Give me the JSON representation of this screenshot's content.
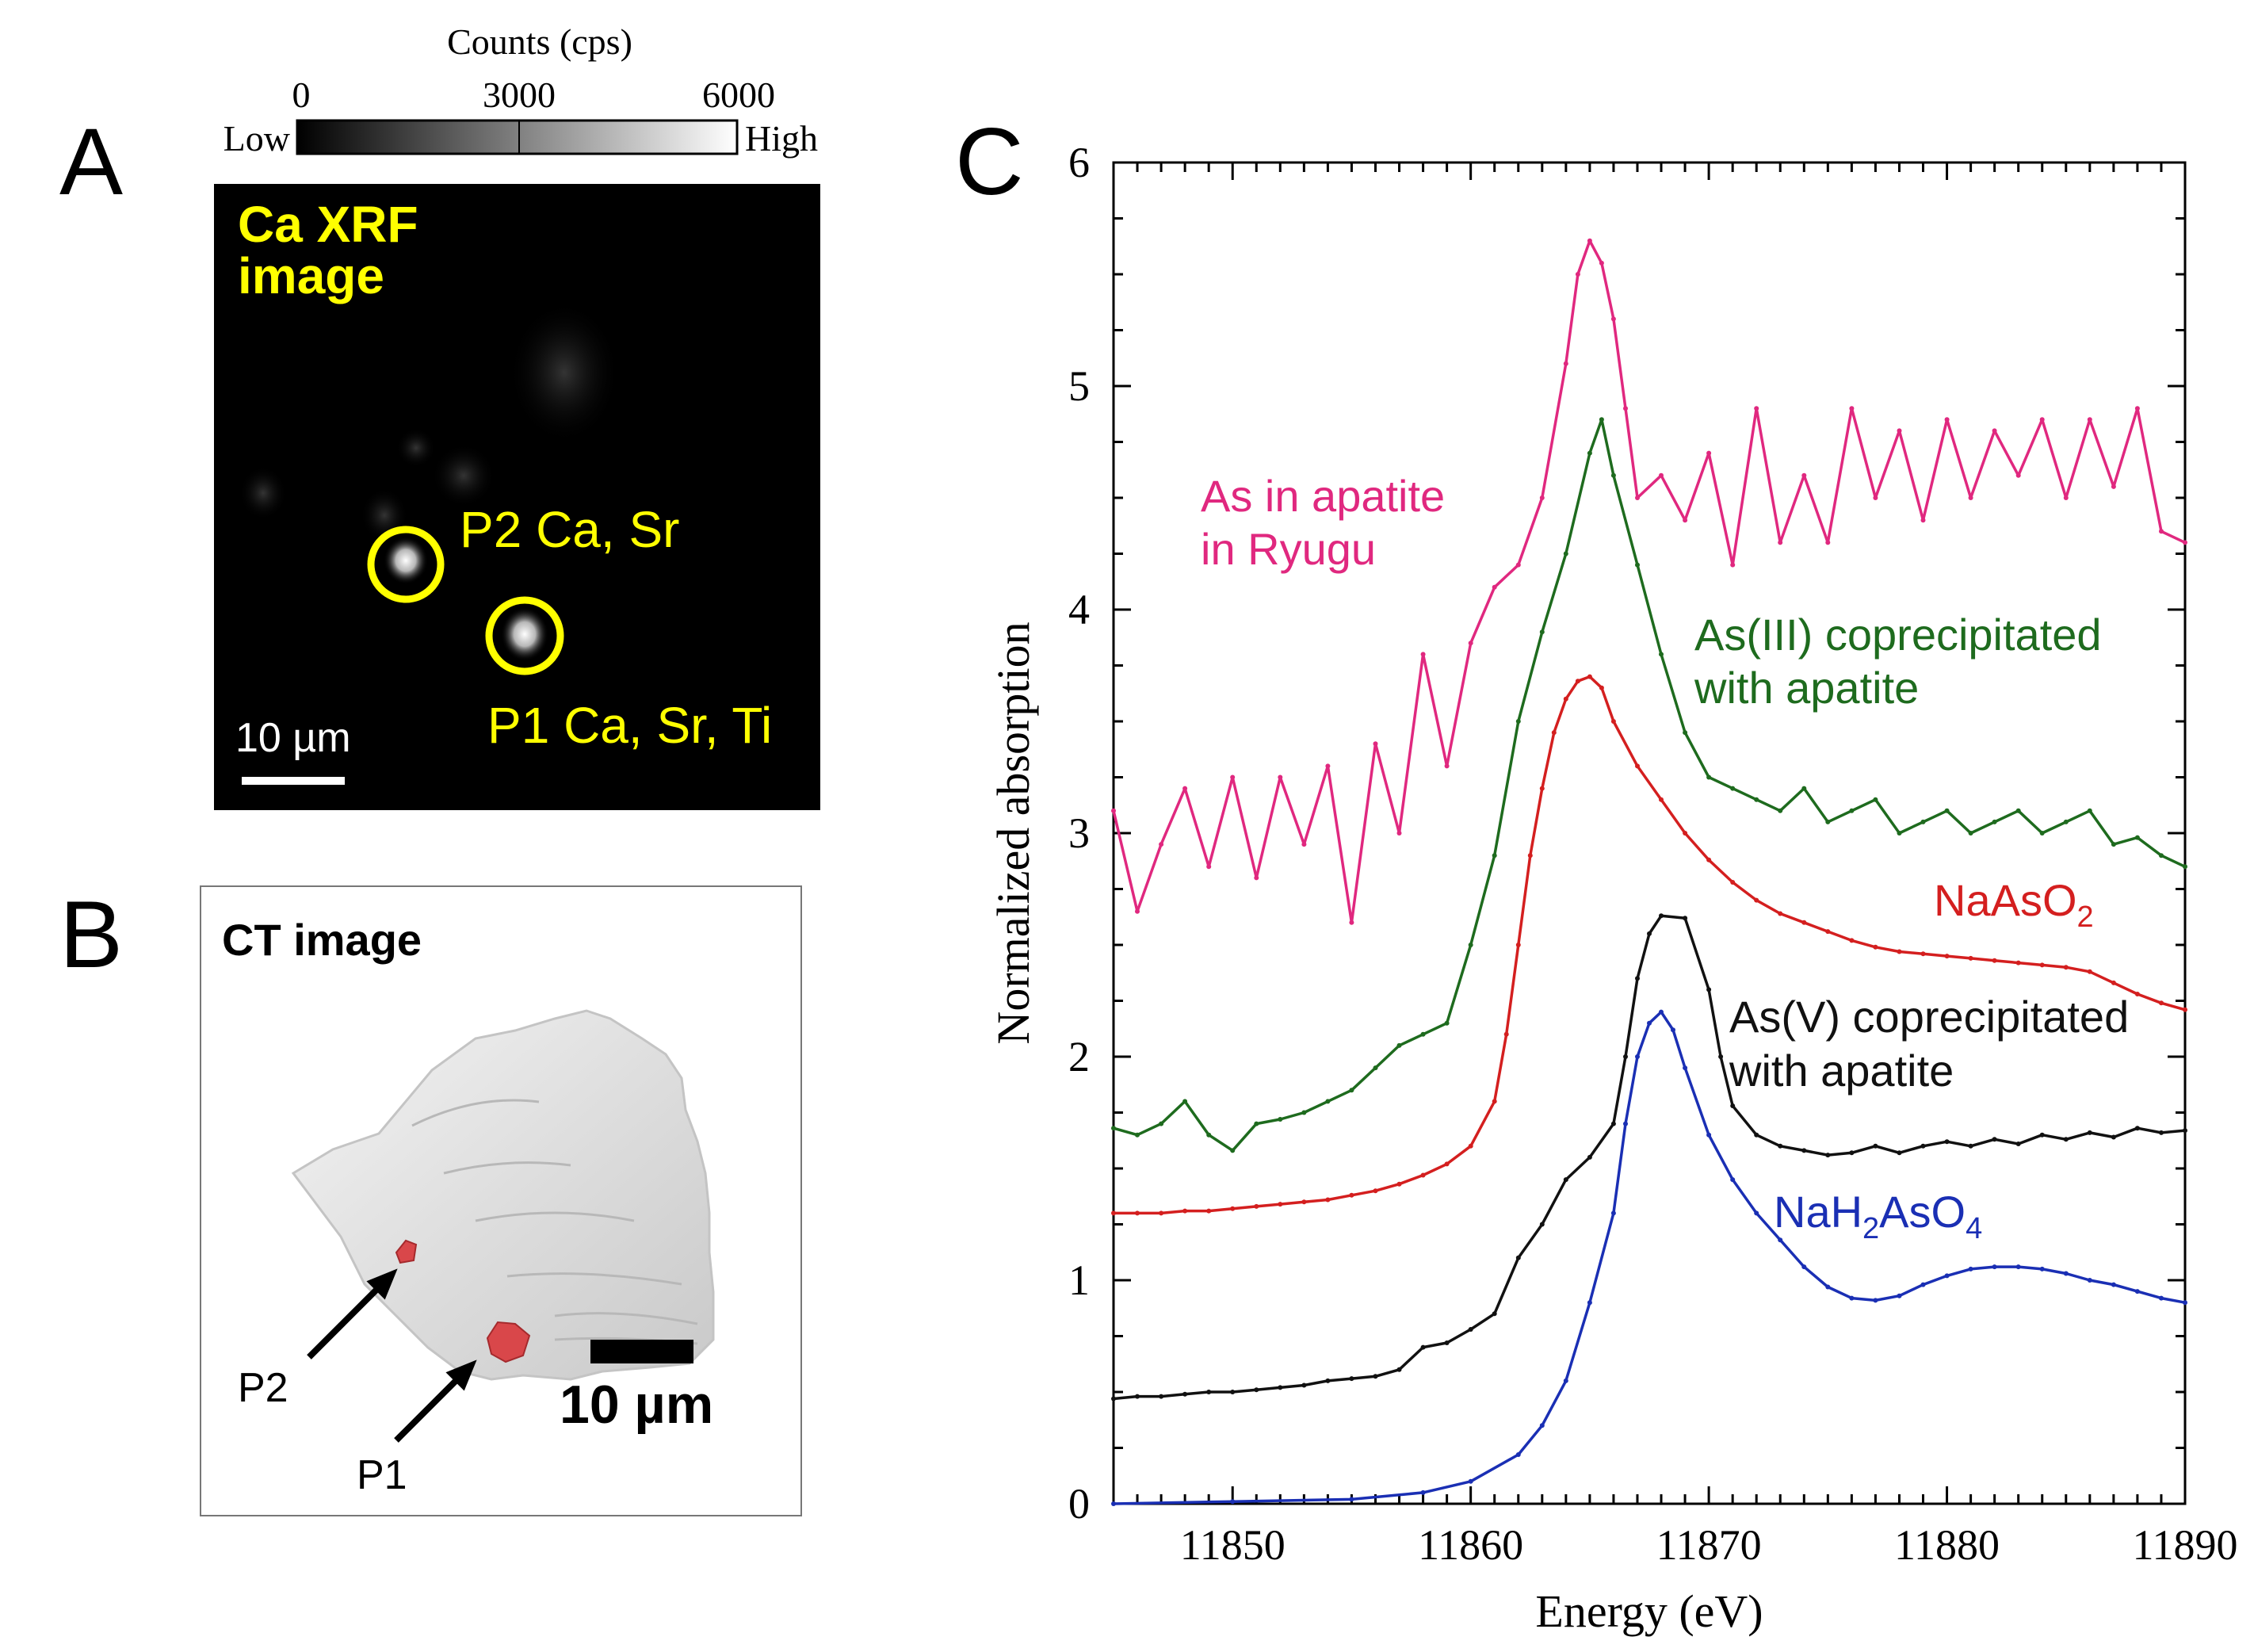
{
  "panel_a": {
    "letter": "A",
    "colorbar": {
      "title": "Counts (cps)",
      "ticks": [
        "0",
        "3000",
        "6000"
      ],
      "low_label": "Low",
      "high_label": "High"
    },
    "image_title_line1": "Ca XRF",
    "image_title_line2": "image",
    "label_p2": "P2 Ca, Sr",
    "label_p1": "P1 Ca, Sr, Ti",
    "scale_label": "10 µm",
    "accent_color": "#ffff00"
  },
  "panel_b": {
    "letter": "B",
    "title": "CT image",
    "label_p2": "P2",
    "label_p1": "P1",
    "scale_label": "10 µm",
    "particle_color": "#d9474a"
  },
  "panel_c": {
    "letter": "C",
    "chart_data": {
      "type": "line",
      "xlabel": "Energy (eV)",
      "ylabel": "Normalized absorption",
      "xlim": [
        11845,
        11890
      ],
      "ylim": [
        0,
        6
      ],
      "xticks": [
        11850,
        11860,
        11870,
        11880,
        11890
      ],
      "yticks": [
        0,
        1,
        2,
        3,
        4,
        5,
        6
      ],
      "series": [
        {
          "name": "As in apatite in Ryugu",
          "label_line1": "As in apatite",
          "label_line2": "in Ryugu",
          "color": "#e0287f",
          "x": [
            11845,
            11846,
            11847,
            11848,
            11849,
            11850,
            11851,
            11852,
            11853,
            11854,
            11855,
            11856,
            11857,
            11858,
            11859,
            11860,
            11861,
            11862,
            11863,
            11864,
            11864.5,
            11865,
            11865.5,
            11866,
            11866.5,
            11867,
            11868,
            11869,
            11870,
            11871,
            11872,
            11873,
            11874,
            11875,
            11876,
            11877,
            11878,
            11879,
            11880,
            11881,
            11882,
            11883,
            11884,
            11885,
            11886,
            11887,
            11888,
            11889,
            11890
          ],
          "y": [
            3.1,
            2.65,
            2.95,
            3.2,
            2.85,
            3.25,
            2.8,
            3.25,
            2.95,
            3.3,
            2.6,
            3.4,
            3.0,
            3.8,
            3.3,
            3.85,
            4.1,
            4.2,
            4.5,
            5.1,
            5.5,
            5.65,
            5.55,
            5.3,
            4.9,
            4.5,
            4.6,
            4.4,
            4.7,
            4.2,
            4.9,
            4.3,
            4.6,
            4.3,
            4.9,
            4.5,
            4.8,
            4.4,
            4.85,
            4.5,
            4.8,
            4.6,
            4.85,
            4.5,
            4.85,
            4.55,
            4.9,
            4.35,
            4.3
          ]
        },
        {
          "name": "As(III) coprecipitated with apatite",
          "label_line1": "As(III) coprecipitated",
          "label_line2": "with apatite",
          "color": "#1e6b1e",
          "x": [
            11845,
            11846,
            11847,
            11848,
            11849,
            11850,
            11851,
            11852,
            11853,
            11854,
            11855,
            11856,
            11857,
            11858,
            11859,
            11860,
            11861,
            11862,
            11863,
            11864,
            11865,
            11865.5,
            11866,
            11867,
            11868,
            11869,
            11870,
            11871,
            11872,
            11873,
            11874,
            11875,
            11876,
            11877,
            11878,
            11879,
            11880,
            11881,
            11882,
            11883,
            11884,
            11885,
            11886,
            11887,
            11888,
            11889,
            11890
          ],
          "y": [
            1.68,
            1.65,
            1.7,
            1.8,
            1.65,
            1.58,
            1.7,
            1.72,
            1.75,
            1.8,
            1.85,
            1.95,
            2.05,
            2.1,
            2.15,
            2.5,
            2.9,
            3.5,
            3.9,
            4.25,
            4.7,
            4.85,
            4.6,
            4.2,
            3.8,
            3.45,
            3.25,
            3.2,
            3.15,
            3.1,
            3.2,
            3.05,
            3.1,
            3.15,
            3.0,
            3.05,
            3.1,
            3.0,
            3.05,
            3.1,
            3.0,
            3.05,
            3.1,
            2.95,
            2.98,
            2.9,
            2.85
          ]
        },
        {
          "name": "NaAsO2",
          "label": "NaAsO",
          "label_sub": "2",
          "color": "#d41f1f",
          "x": [
            11845,
            11846,
            11847,
            11848,
            11849,
            11850,
            11851,
            11852,
            11853,
            11854,
            11855,
            11856,
            11857,
            11858,
            11859,
            11860,
            11861,
            11861.5,
            11862,
            11862.5,
            11863,
            11863.5,
            11864,
            11864.5,
            11865,
            11865.5,
            11866,
            11867,
            11868,
            11869,
            11870,
            11871,
            11872,
            11873,
            11874,
            11875,
            11876,
            11877,
            11878,
            11879,
            11880,
            11881,
            11882,
            11883,
            11884,
            11885,
            11886,
            11887,
            11888,
            11889,
            11890
          ],
          "y": [
            1.3,
            1.3,
            1.3,
            1.31,
            1.31,
            1.32,
            1.33,
            1.34,
            1.35,
            1.36,
            1.38,
            1.4,
            1.43,
            1.47,
            1.52,
            1.6,
            1.8,
            2.1,
            2.5,
            2.9,
            3.2,
            3.45,
            3.6,
            3.68,
            3.7,
            3.65,
            3.5,
            3.3,
            3.15,
            3.0,
            2.88,
            2.78,
            2.7,
            2.64,
            2.6,
            2.56,
            2.52,
            2.49,
            2.47,
            2.46,
            2.45,
            2.44,
            2.43,
            2.42,
            2.41,
            2.4,
            2.38,
            2.33,
            2.28,
            2.24,
            2.21
          ]
        },
        {
          "name": "As(V) coprecipitated with apatite",
          "label_line1": "As(V) coprecipitated",
          "label_line2": "with apatite",
          "color": "#111111",
          "x": [
            11845,
            11846,
            11847,
            11848,
            11849,
            11850,
            11851,
            11852,
            11853,
            11854,
            11855,
            11856,
            11857,
            11858,
            11859,
            11860,
            11861,
            11862,
            11863,
            11864,
            11865,
            11866,
            11866.5,
            11867,
            11867.5,
            11868,
            11869,
            11870,
            11870.5,
            11871,
            11872,
            11873,
            11874,
            11875,
            11876,
            11877,
            11878,
            11879,
            11880,
            11881,
            11882,
            11883,
            11884,
            11885,
            11886,
            11887,
            11888,
            11889,
            11890
          ],
          "y": [
            0.47,
            0.48,
            0.48,
            0.49,
            0.5,
            0.5,
            0.51,
            0.52,
            0.53,
            0.55,
            0.56,
            0.57,
            0.6,
            0.7,
            0.72,
            0.78,
            0.85,
            1.1,
            1.25,
            1.45,
            1.55,
            1.7,
            2.0,
            2.35,
            2.55,
            2.63,
            2.62,
            2.3,
            2.0,
            1.78,
            1.65,
            1.6,
            1.58,
            1.56,
            1.57,
            1.6,
            1.57,
            1.6,
            1.62,
            1.6,
            1.63,
            1.61,
            1.65,
            1.63,
            1.66,
            1.64,
            1.68,
            1.66,
            1.67
          ]
        },
        {
          "name": "NaH2AsO4",
          "label_parts": [
            "NaH",
            "2",
            "AsO",
            "4"
          ],
          "color": "#1a2fb4",
          "x": [
            11845,
            11850,
            11855,
            11858,
            11860,
            11862,
            11863,
            11864,
            11865,
            11866,
            11866.5,
            11867,
            11867.5,
            11868,
            11868.5,
            11869,
            11870,
            11871,
            11872,
            11873,
            11874,
            11875,
            11876,
            11877,
            11878,
            11879,
            11880,
            11881,
            11882,
            11883,
            11884,
            11885,
            11886,
            11887,
            11888,
            11889,
            11890
          ],
          "y": [
            0.0,
            0.01,
            0.02,
            0.05,
            0.1,
            0.22,
            0.35,
            0.55,
            0.9,
            1.3,
            1.7,
            2.0,
            2.15,
            2.2,
            2.12,
            1.95,
            1.65,
            1.45,
            1.3,
            1.18,
            1.06,
            0.97,
            0.92,
            0.91,
            0.93,
            0.98,
            1.02,
            1.05,
            1.06,
            1.06,
            1.05,
            1.03,
            1.0,
            0.98,
            0.95,
            0.92,
            0.9
          ]
        }
      ]
    }
  }
}
